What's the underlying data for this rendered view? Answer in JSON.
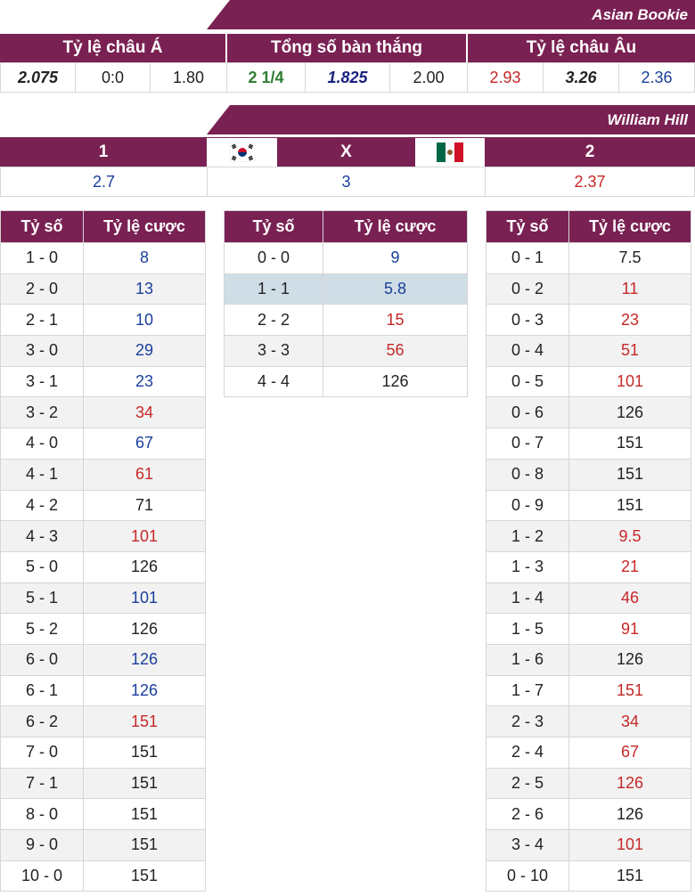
{
  "asian": {
    "title": "Asian Bookie",
    "headers": [
      "Tỷ lệ châu Á",
      "Tổng số bàn thắng",
      "Tỷ lệ châu Âu"
    ],
    "values": [
      "2.075",
      "0:0",
      "1.80",
      "2 1/4",
      "1.825",
      "2.00",
      "2.93",
      "3.26",
      "2.36"
    ]
  },
  "william": {
    "title": "William Hill",
    "labels": [
      "1",
      "X",
      "2"
    ],
    "values": [
      "2.7",
      "3",
      "2.37"
    ],
    "home_flag": "south-korea-flag-icon",
    "away_flag": "mexico-flag-icon"
  },
  "score_tables": {
    "col_score": "Tỷ số",
    "col_odds": "Tỷ lệ cược",
    "home": [
      {
        "s": "1 - 0",
        "o": "8",
        "c": "blue"
      },
      {
        "s": "2 - 0",
        "o": "13",
        "c": "blue"
      },
      {
        "s": "2 - 1",
        "o": "10",
        "c": "blue"
      },
      {
        "s": "3 - 0",
        "o": "29",
        "c": "blue"
      },
      {
        "s": "3 - 1",
        "o": "23",
        "c": "blue"
      },
      {
        "s": "3 - 2",
        "o": "34",
        "c": "red"
      },
      {
        "s": "4 - 0",
        "o": "67",
        "c": "blue"
      },
      {
        "s": "4 - 1",
        "o": "61",
        "c": "red"
      },
      {
        "s": "4 - 2",
        "o": "71",
        "c": "dark"
      },
      {
        "s": "4 - 3",
        "o": "101",
        "c": "red"
      },
      {
        "s": "5 - 0",
        "o": "126",
        "c": "dark"
      },
      {
        "s": "5 - 1",
        "o": "101",
        "c": "blue"
      },
      {
        "s": "5 - 2",
        "o": "126",
        "c": "dark"
      },
      {
        "s": "6 - 0",
        "o": "126",
        "c": "blue"
      },
      {
        "s": "6 - 1",
        "o": "126",
        "c": "blue"
      },
      {
        "s": "6 - 2",
        "o": "151",
        "c": "red"
      },
      {
        "s": "7 - 0",
        "o": "151",
        "c": "dark"
      },
      {
        "s": "7 - 1",
        "o": "151",
        "c": "dark"
      },
      {
        "s": "8 - 0",
        "o": "151",
        "c": "dark"
      },
      {
        "s": "9 - 0",
        "o": "151",
        "c": "dark"
      },
      {
        "s": "10 - 0",
        "o": "151",
        "c": "dark"
      }
    ],
    "draw": [
      {
        "s": "0 - 0",
        "o": "9",
        "c": "blue"
      },
      {
        "s": "1 - 1",
        "o": "5.8",
        "c": "blue"
      },
      {
        "s": "2 - 2",
        "o": "15",
        "c": "red"
      },
      {
        "s": "3 - 3",
        "o": "56",
        "c": "red"
      },
      {
        "s": "4 - 4",
        "o": "126",
        "c": "dark"
      }
    ],
    "away": [
      {
        "s": "0 - 1",
        "o": "7.5",
        "c": "dark"
      },
      {
        "s": "0 - 2",
        "o": "11",
        "c": "red"
      },
      {
        "s": "0 - 3",
        "o": "23",
        "c": "red"
      },
      {
        "s": "0 - 4",
        "o": "51",
        "c": "red"
      },
      {
        "s": "0 - 5",
        "o": "101",
        "c": "red"
      },
      {
        "s": "0 - 6",
        "o": "126",
        "c": "dark"
      },
      {
        "s": "0 - 7",
        "o": "151",
        "c": "dark"
      },
      {
        "s": "0 - 8",
        "o": "151",
        "c": "dark"
      },
      {
        "s": "0 - 9",
        "o": "151",
        "c": "dark"
      },
      {
        "s": "1 - 2",
        "o": "9.5",
        "c": "red"
      },
      {
        "s": "1 - 3",
        "o": "21",
        "c": "red"
      },
      {
        "s": "1 - 4",
        "o": "46",
        "c": "red"
      },
      {
        "s": "1 - 5",
        "o": "91",
        "c": "red"
      },
      {
        "s": "1 - 6",
        "o": "126",
        "c": "dark"
      },
      {
        "s": "1 - 7",
        "o": "151",
        "c": "red"
      },
      {
        "s": "2 - 3",
        "o": "34",
        "c": "red"
      },
      {
        "s": "2 - 4",
        "o": "67",
        "c": "red"
      },
      {
        "s": "2 - 5",
        "o": "126",
        "c": "red"
      },
      {
        "s": "2 - 6",
        "o": "126",
        "c": "dark"
      },
      {
        "s": "3 - 4",
        "o": "101",
        "c": "red"
      },
      {
        "s": "0 - 10",
        "o": "151",
        "c": "dark"
      }
    ]
  }
}
